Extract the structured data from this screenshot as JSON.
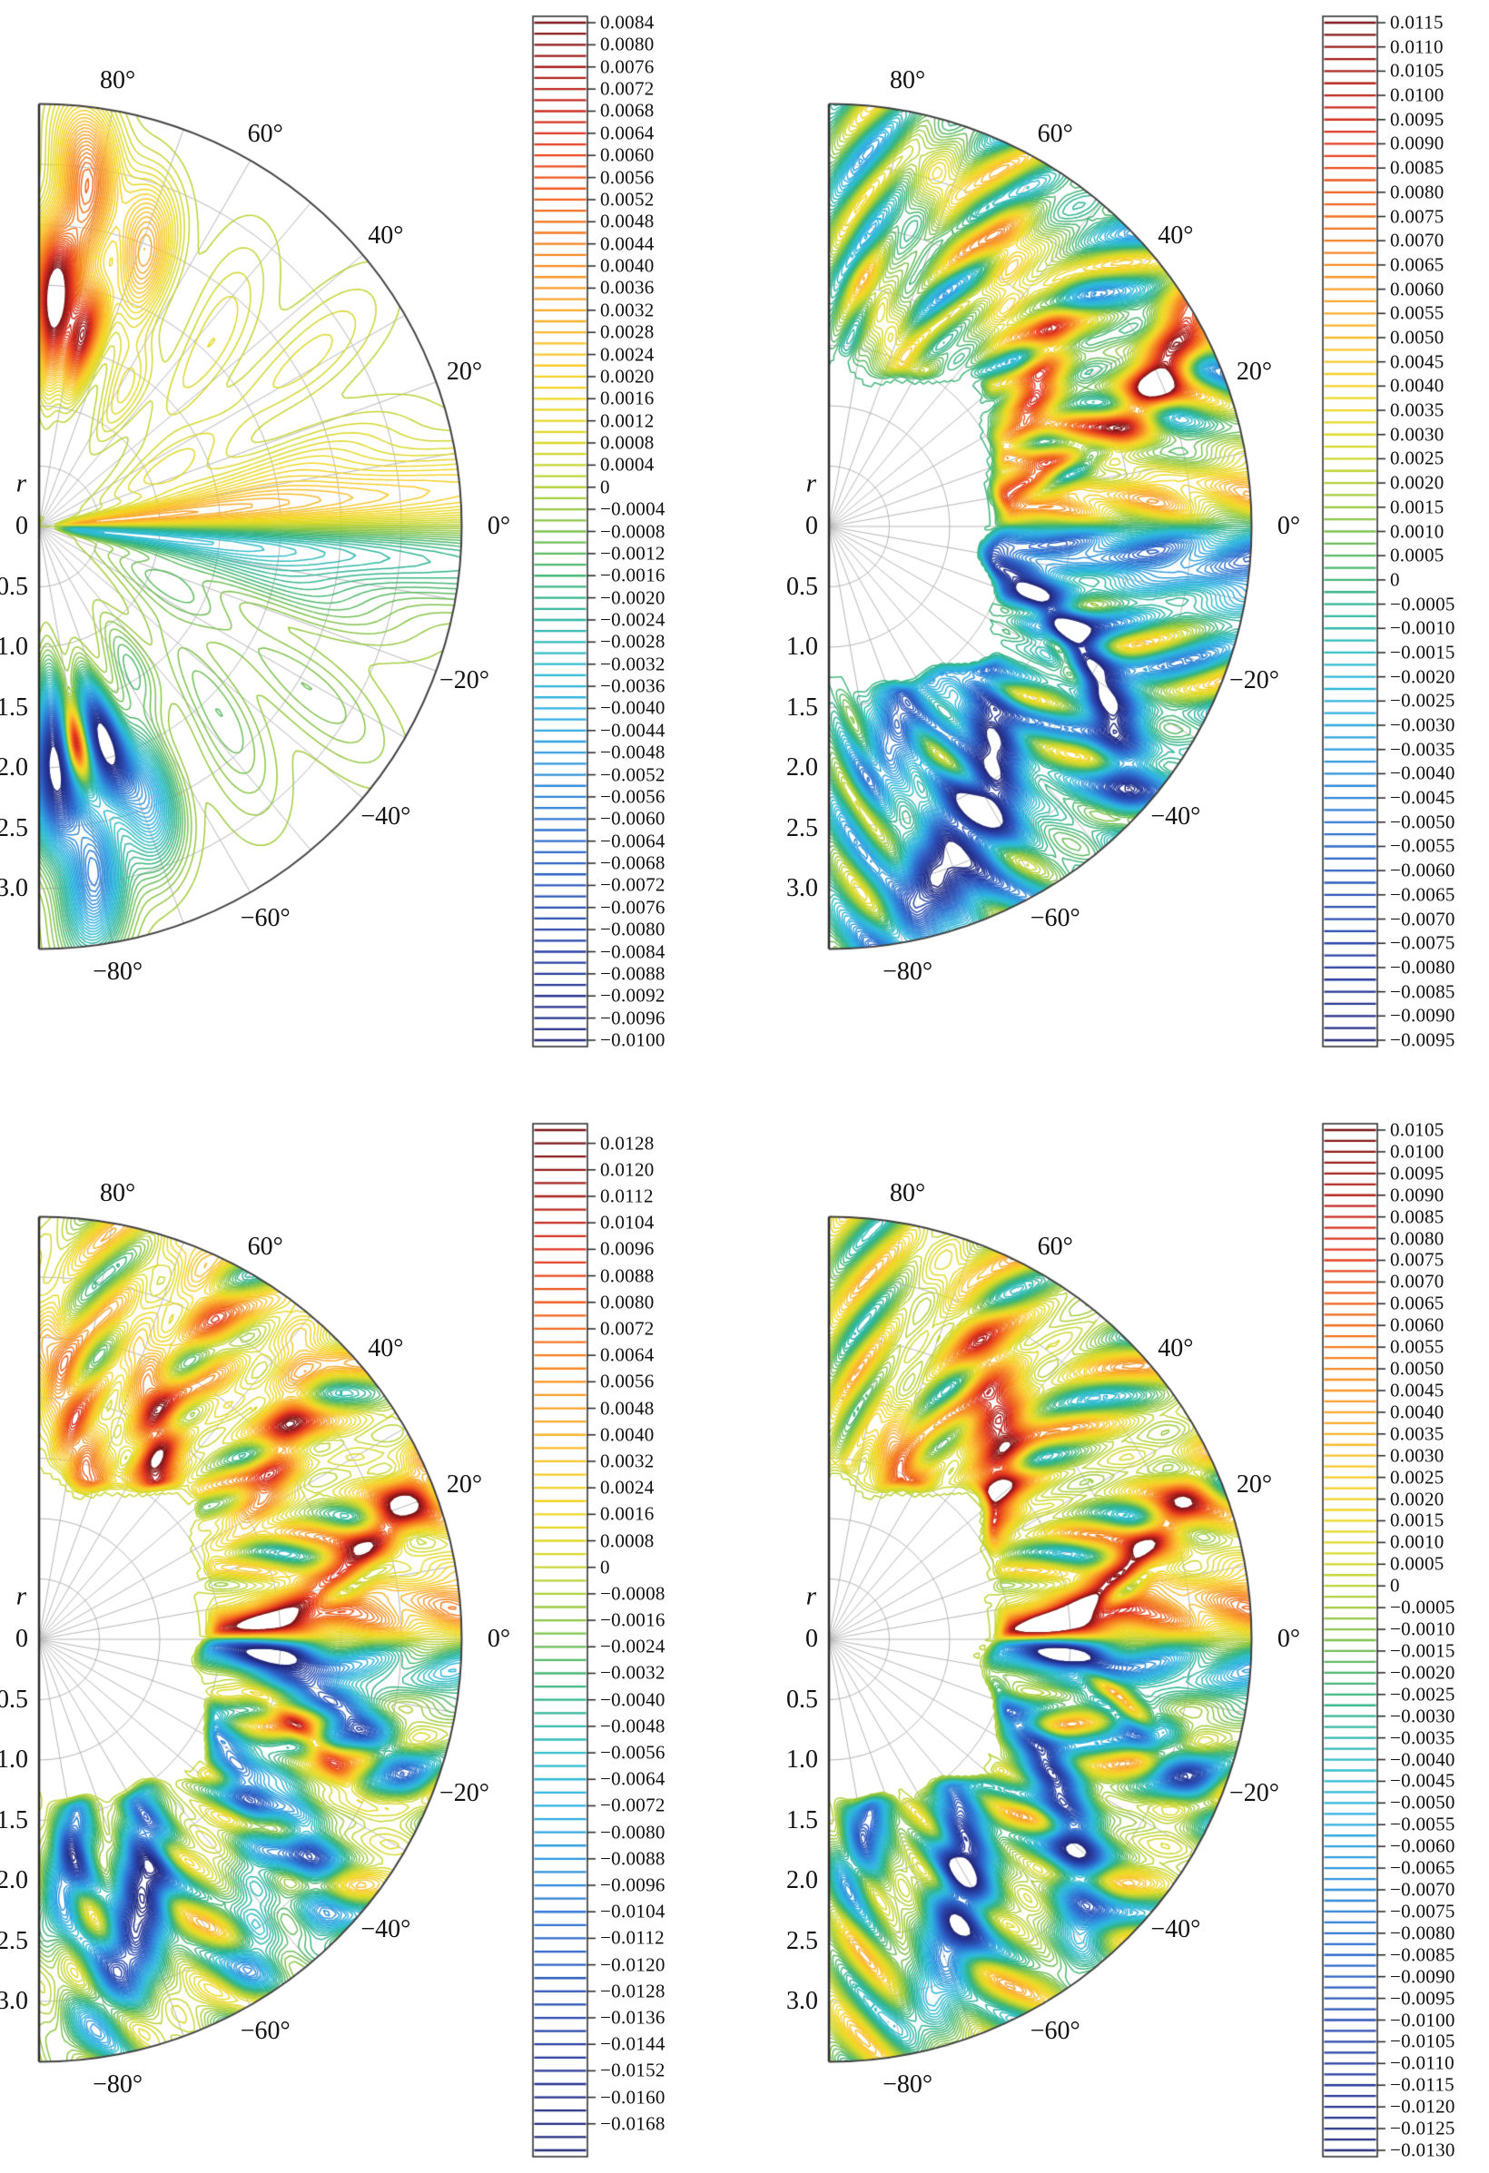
{
  "figure": {
    "background": "#ffffff",
    "grid_color": "#b7b7b7",
    "boundary_color": "#3f3f3f",
    "edge_axis_color": "#2a2a2a",
    "label_color": "#111111",
    "colormap_stops": [
      [
        0.0,
        "#232a7c"
      ],
      [
        0.06,
        "#27399b"
      ],
      [
        0.13,
        "#2b50b5"
      ],
      [
        0.2,
        "#2e6fd0"
      ],
      [
        0.27,
        "#2f96dd"
      ],
      [
        0.33,
        "#2fb3e2"
      ],
      [
        0.38,
        "#2fbdc8"
      ],
      [
        0.43,
        "#2fb48f"
      ],
      [
        0.47,
        "#4fb86a"
      ],
      [
        0.5,
        "#7ec24c"
      ],
      [
        0.54,
        "#abcf3a"
      ],
      [
        0.58,
        "#d7d92c"
      ],
      [
        0.63,
        "#f2d824"
      ],
      [
        0.68,
        "#fbc32c"
      ],
      [
        0.73,
        "#f9a22b"
      ],
      [
        0.78,
        "#f58220"
      ],
      [
        0.84,
        "#ef5a1e"
      ],
      [
        0.89,
        "#e03420"
      ],
      [
        0.94,
        "#b5231d"
      ],
      [
        1.0,
        "#7c1416"
      ]
    ]
  },
  "chart_data": [
    {
      "id": "p1",
      "position": "top-left",
      "type": "heatmap",
      "subtype": "polar-contour-half-disk",
      "r_axis": {
        "label": "r",
        "ticks": [
          "0",
          "0.5",
          "1.0",
          "1.5",
          "2.0",
          "2.5",
          "3.0"
        ],
        "tick_values": [
          0,
          0.5,
          1.0,
          1.5,
          2.0,
          2.5,
          3.0
        ],
        "max": 3.5,
        "grid_step": 0.5
      },
      "theta_axis": {
        "tick_labels": [
          "80°",
          "60°",
          "40°",
          "20°",
          "0°",
          "−20°",
          "−40°",
          "−60°",
          "−80°"
        ],
        "tick_values_deg": [
          80,
          60,
          40,
          20,
          0,
          -20,
          -40,
          -60,
          -80
        ],
        "grid_step_deg": 10,
        "span_deg": [
          -90,
          90
        ]
      },
      "colorbar": {
        "max_label": 0.0084,
        "min_label": -0.01,
        "label_step": 0.0004,
        "line_step": 0.0002,
        "extra_lines_top": 0,
        "extra_lines_bottom": 0,
        "labels": [
          "0.0084",
          "0.0080",
          "0.0076",
          "0.0072",
          "0.0068",
          "0.0064",
          "0.0060",
          "0.0056",
          "0.0052",
          "0.0048",
          "0.0044",
          "0.0040",
          "0.0036",
          "0.0032",
          "0.0028",
          "0.0024",
          "0.0020",
          "0.0016",
          "0.0012",
          "0.0008",
          "0.0004",
          "0",
          "−0.0004",
          "−0.0008",
          "−0.0012",
          "−0.0016",
          "−0.0020",
          "−0.0024",
          "−0.0028",
          "−0.0032",
          "−0.0036",
          "−0.0040",
          "−0.0044",
          "−0.0048",
          "−0.0052",
          "−0.0056",
          "−0.0060",
          "−0.0064",
          "−0.0068",
          "−0.0072",
          "−0.0076",
          "−0.0080",
          "−0.0084",
          "−0.0088",
          "−0.0092",
          "−0.0096",
          "−0.0100"
        ]
      },
      "features": "sparse contours; warm lobes near upper flat edge, cool lobes near lower flat edge, rainbow fan wedge converging at pole along 0°"
    },
    {
      "id": "p2",
      "position": "top-right",
      "type": "heatmap",
      "subtype": "polar-contour-half-disk",
      "r_axis": {
        "label": "r",
        "ticks": [
          "0",
          "0.5",
          "1.0",
          "1.5",
          "2.0",
          "2.5",
          "3.0"
        ],
        "tick_values": [
          0,
          0.5,
          1.0,
          1.5,
          2.0,
          2.5,
          3.0
        ],
        "max": 3.5,
        "grid_step": 0.5
      },
      "theta_axis": {
        "tick_labels": [
          "80°",
          "60°",
          "40°",
          "20°",
          "0°",
          "−20°",
          "−40°",
          "−60°",
          "−80°"
        ],
        "tick_values_deg": [
          80,
          60,
          40,
          20,
          0,
          -20,
          -40,
          -60,
          -80
        ],
        "grid_step_deg": 10,
        "span_deg": [
          -90,
          90
        ]
      },
      "colorbar": {
        "max_label": 0.0115,
        "min_label": -0.0095,
        "label_step": 0.0005,
        "line_step": 0.00025,
        "extra_lines_top": 0,
        "extra_lines_bottom": 0,
        "labels": [
          "0.0115",
          "0.0110",
          "0.0105",
          "0.0100",
          "0.0095",
          "0.0090",
          "0.0085",
          "0.0080",
          "0.0075",
          "0.0070",
          "0.0065",
          "0.0060",
          "0.0055",
          "0.0050",
          "0.0045",
          "0.0040",
          "0.0035",
          "0.0030",
          "0.0025",
          "0.0020",
          "0.0015",
          "0.0010",
          "0.0005",
          "0",
          "−0.0005",
          "−0.0010",
          "−0.0015",
          "−0.0020",
          "−0.0025",
          "−0.0030",
          "−0.0035",
          "−0.0040",
          "−0.0045",
          "−0.0050",
          "−0.0055",
          "−0.0060",
          "−0.0065",
          "−0.0070",
          "−0.0075",
          "−0.0080",
          "−0.0085",
          "−0.0090",
          "−0.0095"
        ],
        "note": ""
      },
      "features": "dense tilted lobe streaks; red maximum near rim at ~25°, navy minima between −30° and −70°, blank inner region bounded by jagged contour, slit band along 0° starting near r=1.3"
    },
    {
      "id": "p3",
      "position": "bottom-left",
      "type": "heatmap",
      "subtype": "polar-contour-half-disk",
      "r_axis": {
        "label": "r",
        "ticks": [
          "0",
          "0.5",
          "1.0",
          "1.5",
          "2.0",
          "2.5",
          "3.0"
        ],
        "tick_values": [
          0,
          0.5,
          1.0,
          1.5,
          2.0,
          2.5,
          3.0
        ],
        "max": 3.5,
        "grid_step": 0.5
      },
      "theta_axis": {
        "tick_labels": [
          "80°",
          "60°",
          "40°",
          "20°",
          "0°",
          "−20°",
          "−40°",
          "−60°",
          "−80°"
        ],
        "tick_values_deg": [
          80,
          60,
          40,
          20,
          0,
          -20,
          -40,
          -60,
          -80
        ],
        "grid_step_deg": 10,
        "span_deg": [
          -90,
          90
        ]
      },
      "colorbar": {
        "max_label": 0.0128,
        "min_label": -0.0168,
        "label_step": 0.0008,
        "line_step": 0.0004,
        "extra_lines_top": 1,
        "extra_lines_bottom": 2,
        "labels": [
          "0.0128",
          "0.0120",
          "0.0112",
          "0.0104",
          "0.0096",
          "0.0088",
          "0.0080",
          "0.0072",
          "0.0064",
          "0.0056",
          "0.0048",
          "0.0040",
          "0.0032",
          "0.0024",
          "0.0016",
          "0.0008",
          "0",
          "−0.0008",
          "−0.0016",
          "−0.0024",
          "−0.0032",
          "−0.0040",
          "−0.0048",
          "−0.0056",
          "−0.0064",
          "−0.0072",
          "−0.0080",
          "−0.0088",
          "−0.0096",
          "−0.0104",
          "−0.0112",
          "−0.0120",
          "−0.0128",
          "−0.0136",
          "−0.0144",
          "−0.0152",
          "−0.0160",
          "−0.0168"
        ]
      },
      "features": "strong red streaks in upper half (max near 17° at rim and 56° mid-radius), deep navy streaks lower-left, compact red and navy lenses hugging the 0° slit"
    },
    {
      "id": "p4",
      "position": "bottom-right",
      "type": "heatmap",
      "subtype": "polar-contour-half-disk",
      "r_axis": {
        "label": "r",
        "ticks": [
          "0",
          "0.5",
          "1.0",
          "1.5",
          "2.0",
          "2.5",
          "3.0"
        ],
        "tick_values": [
          0,
          0.5,
          1.0,
          1.5,
          2.0,
          2.5,
          3.0
        ],
        "max": 3.5,
        "grid_step": 0.5
      },
      "theta_axis": {
        "tick_labels": [
          "80°",
          "60°",
          "40°",
          "20°",
          "0°",
          "−20°",
          "−40°",
          "−60°",
          "−80°"
        ],
        "tick_values_deg": [
          80,
          60,
          40,
          20,
          0,
          -20,
          -40,
          -60,
          -80
        ],
        "grid_step_deg": 10,
        "span_deg": [
          -90,
          90
        ]
      },
      "colorbar": {
        "max_label": 0.0105,
        "min_label": -0.013,
        "label_step": 0.0005,
        "line_step": 0.00025,
        "extra_lines_top": 0,
        "extra_lines_bottom": 0,
        "labels": [
          "0.0105",
          "0.0100",
          "0.0095",
          "0.0090",
          "0.0085",
          "0.0080",
          "0.0075",
          "0.0070",
          "0.0065",
          "0.0060",
          "0.0055",
          "0.0050",
          "0.0045",
          "0.0040",
          "0.0035",
          "0.0030",
          "0.0025",
          "0.0020",
          "0.0015",
          "0.0010",
          "0.0005",
          "0",
          "−0.0005",
          "−0.0010",
          "−0.0015",
          "−0.0020",
          "−0.0025",
          "−0.0030",
          "−0.0035",
          "−0.0040",
          "−0.0045",
          "−0.0050",
          "−0.0055",
          "−0.0060",
          "−0.0065",
          "−0.0070",
          "−0.0075",
          "−0.0080",
          "−0.0085",
          "−0.0090",
          "−0.0095",
          "−0.0100",
          "−0.0105",
          "−0.0110",
          "−0.0115",
          "−0.0120",
          "−0.0125",
          "−0.0130"
        ]
      },
      "features": "tilted streak chains with green lens cores inside red and navy bands; dark red maximum near 14°, large navy streak near −60°, orange flames along upper flat edge"
    }
  ]
}
